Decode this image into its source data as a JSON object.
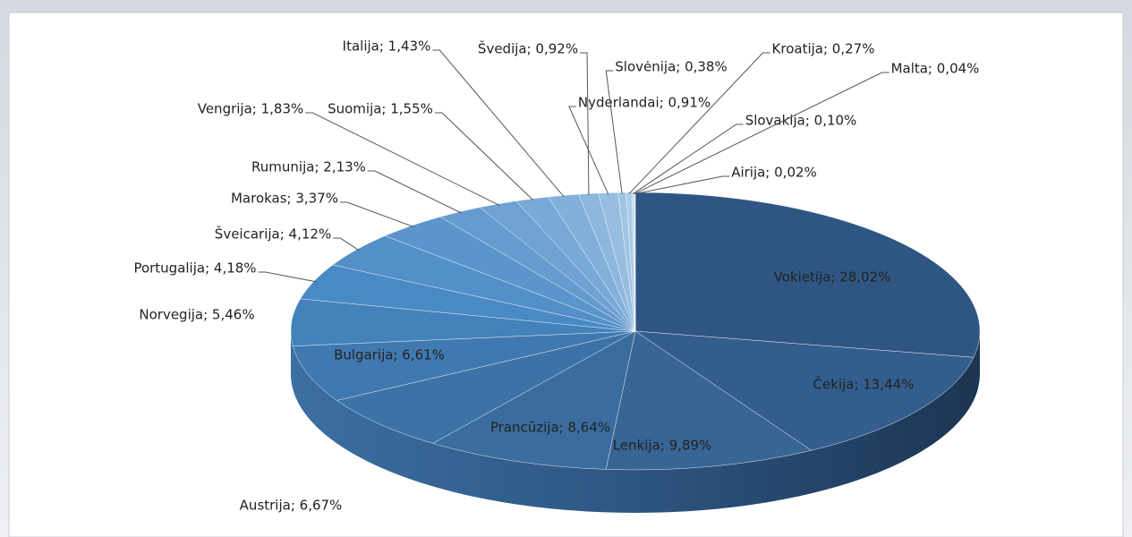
{
  "chart_data": {
    "type": "pie",
    "values": [
      28.02,
      13.44,
      9.89,
      8.64,
      6.67,
      6.61,
      5.46,
      4.18,
      4.12,
      3.37,
      2.13,
      1.83,
      1.55,
      1.43,
      0.92,
      0.91,
      0.38,
      0.27,
      0.1,
      0.04,
      0.02
    ],
    "value_labels": [
      "Vokietija; 28,02%",
      "Čekija; 13,44%",
      "Lenkija; 9,89%",
      "Prancūzija; 8,64%",
      "Austrija; 6,67%",
      "Bulgarija; 6,61%",
      "Norvegija; 5,46%",
      "Portugalija; 4,18%",
      "Šveicarija; 4,12%",
      "Marokas; 3,37%",
      "Rumunija; 2,13%",
      "Vengrija; 1,83%",
      "Suomija; 1,55%",
      "Italija; 1,43%",
      "Švedija; 0,92%",
      "Nyderlandai; 0,91%",
      "Slovėnija; 0,38%",
      "Kroatija; 0,27%",
      "Slovakija; 0,10%",
      "Malta; 0,04%",
      "Airija; 0,02%"
    ],
    "colors": [
      "#2f5682",
      "#335d8c",
      "#376594",
      "#3a6c9d",
      "#3d72a6",
      "#4079b0",
      "#4382bb",
      "#4a8ac4",
      "#538fc8",
      "#5b95cc",
      "#659bcf",
      "#6fa2d3",
      "#79a9d6",
      "#83b0da",
      "#8db7dd",
      "#97bee1",
      "#a1c5e4",
      "#abcce8",
      "#b5d3eb",
      "#bfdaee",
      "#c9e0f1"
    ]
  }
}
